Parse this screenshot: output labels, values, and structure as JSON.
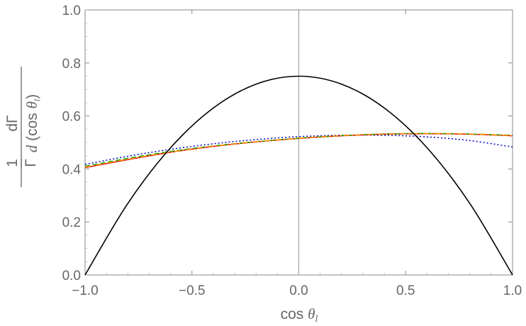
{
  "chart_data": {
    "type": "line",
    "xlabel": "cos θ_l",
    "ylabel": "1/Γ dΓ/d (cos θ_l)",
    "xlim": [
      -1.0,
      1.0
    ],
    "ylim": [
      0.0,
      1.0
    ],
    "x_ticks": [
      "−1.0",
      "−0.5",
      "0.0",
      "0.5",
      "1.0"
    ],
    "y_ticks": [
      "0.0",
      "0.2",
      "0.4",
      "0.6",
      "0.8",
      "1.0"
    ],
    "grid": false,
    "frame": true,
    "axes_at_origin": true,
    "x": [
      -1.0,
      -0.8,
      -0.6,
      -0.4,
      -0.2,
      0.0,
      0.2,
      0.4,
      0.6,
      0.8,
      1.0
    ],
    "series": [
      {
        "color": "#000000",
        "dash": "solid",
        "values": [
          0.0,
          0.27,
          0.48,
          0.63,
          0.72,
          0.75,
          0.72,
          0.63,
          0.48,
          0.27,
          0.0
        ]
      },
      {
        "color": "#0000cc",
        "dash": "dotted",
        "values": [
          0.417,
          0.448,
          0.474,
          0.495,
          0.511,
          0.522,
          0.527,
          0.527,
          0.521,
          0.507,
          0.483
        ]
      },
      {
        "color": "#e00000",
        "dash": "solid",
        "values": [
          0.405,
          0.435,
          0.463,
          0.485,
          0.502,
          0.515,
          0.525,
          0.531,
          0.533,
          0.531,
          0.525
        ]
      },
      {
        "color": "#00aa00",
        "dash": "dashed",
        "values": [
          0.41,
          0.44,
          0.466,
          0.487,
          0.503,
          0.516,
          0.526,
          0.532,
          0.534,
          0.532,
          0.527
        ]
      },
      {
        "color": "#ff9900",
        "dash": "dashdot",
        "values": [
          0.407,
          0.437,
          0.464,
          0.486,
          0.503,
          0.516,
          0.526,
          0.532,
          0.534,
          0.532,
          0.526
        ]
      }
    ]
  }
}
